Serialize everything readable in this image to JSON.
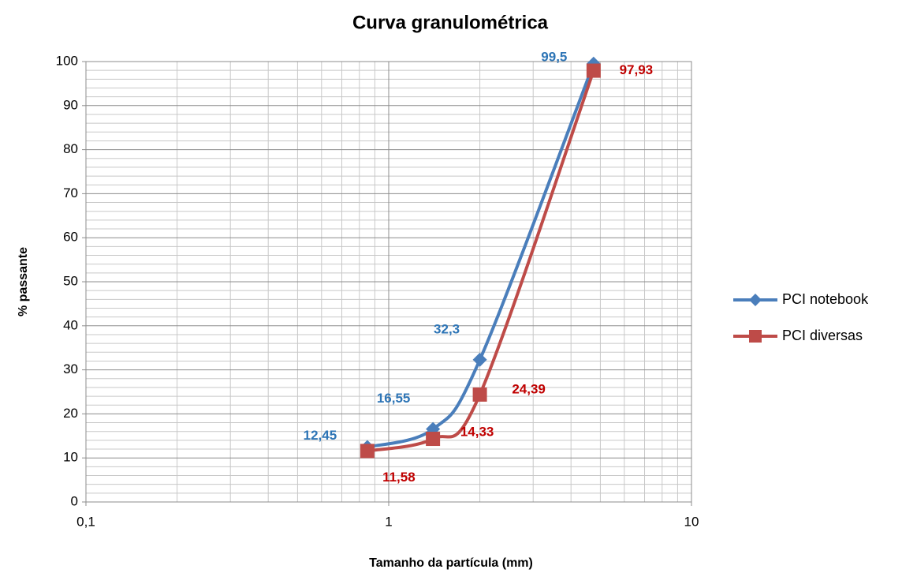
{
  "chart_data": {
    "type": "line",
    "title": "Curva granulométrica",
    "x_label": "Tamanho da partícula (mm)",
    "y_label": "% passante",
    "x": [
      0.85,
      1.4,
      2,
      4.75
    ],
    "series": [
      {
        "name": "PCI notebook",
        "color": "#4a7ebb",
        "label_color": "#2e75b6",
        "marker": "diamond",
        "values": [
          12.45,
          16.55,
          32.3,
          99.5
        ],
        "value_labels": [
          "12,45",
          "16,55",
          "32,3",
          "99,5"
        ]
      },
      {
        "name": "PCI diversas",
        "color": "#be4b48",
        "label_color": "#c00000",
        "marker": "square",
        "values": [
          11.58,
          14.33,
          24.39,
          97.93
        ],
        "value_labels": [
          "11,58",
          "14,33",
          "24,39",
          "97,93"
        ]
      }
    ],
    "xscale": "log",
    "xlim": [
      0.1,
      10
    ],
    "xticks": [
      {
        "value": 0.1,
        "label": "0,1"
      },
      1,
      10
    ],
    "xminorticks": [
      0.2,
      0.3,
      0.4,
      0.5,
      0.6,
      0.7,
      0.8,
      0.9,
      2,
      3,
      4,
      5,
      6,
      7,
      8,
      9
    ],
    "ylim": [
      0,
      100
    ],
    "yticks": [
      0,
      10,
      20,
      30,
      40,
      50,
      60,
      70,
      80,
      90,
      100
    ],
    "yminorticks": [
      2,
      4,
      6,
      8,
      12,
      14,
      16,
      18,
      22,
      24,
      26,
      28,
      32,
      34,
      36,
      38,
      42,
      44,
      46,
      48,
      52,
      54,
      56,
      58,
      62,
      64,
      66,
      68,
      72,
      74,
      76,
      78,
      82,
      84,
      86,
      88,
      92,
      94,
      96,
      98
    ],
    "grid": true,
    "legend": "right",
    "smooth": true
  }
}
